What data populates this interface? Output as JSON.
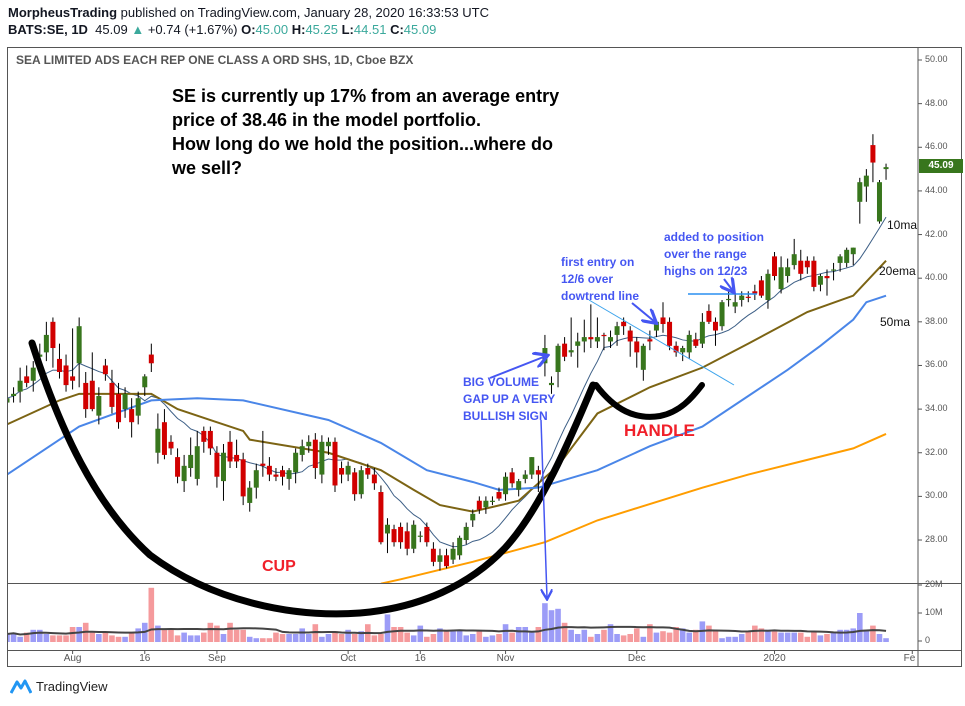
{
  "header": {
    "author": "MorpheusTrading",
    "published": " published on TradingView.com, January 28, 2020 16:33:53 UTC",
    "symbol": "BATS:SE, 1D",
    "last": "45.09",
    "change": "+0.74 (+1.67%)",
    "o_label": "O:",
    "o": "45.00",
    "h_label": "H:",
    "h": "45.25",
    "l_label": "L:",
    "l": "44.51",
    "c_label": "C:",
    "c": "45.09",
    "up_icon": "triangle-up-icon"
  },
  "symbol_title": "SEA LIMITED ADS EACH REP ONE CLASS A ORD SHS, 1D, Cboe BZX",
  "last_price_label": "45.09",
  "annotations": {
    "main": [
      "SE is currently up 17% from an average entry",
      "price of 38.46 in the model portfolio.",
      "How long do we hold the position...where do",
      "we sell?"
    ],
    "first_entry": [
      "first entry on",
      "12/6 over",
      "dowtrend line"
    ],
    "added": [
      "added to position",
      "over the range",
      "highs on 12/23"
    ],
    "gap": [
      "BIG VOLUME",
      "GAP UP A VERY",
      "BULLISH SIGN"
    ],
    "cup": "CUP",
    "handle": "HANDLE",
    "ma10": "10ma",
    "ema20": "20ema",
    "ma50": "50ma"
  },
  "colors": {
    "up": "#38761d",
    "down": "#d10000",
    "vol_up": "#9c9cf7",
    "vol_down": "#f59a9c",
    "ma10": "#3d5f86",
    "ema20": "#7c6414",
    "ma50": "#4a86e8",
    "ma200": "#ff9d00",
    "annotation_blue": "#4556f2",
    "teal": "#3ba99c"
  },
  "chart_data": {
    "type": "candlestick",
    "ylim": [
      26.03,
      50.55
    ],
    "volume_ylim": [
      0,
      24
    ],
    "grid": false,
    "y_ticks": [
      "50.00",
      "48.00",
      "46.00",
      "44.00",
      "42.00",
      "40.00",
      "38.00",
      "36.00",
      "34.00",
      "32.00",
      "30.00",
      "28.00"
    ],
    "volume_ticks": [
      {
        "label": "20M",
        "value": 20
      },
      {
        "label": "10M",
        "value": 10
      },
      {
        "label": "0",
        "value": 0
      }
    ],
    "x_ticks": [
      {
        "label": "Aug",
        "bar": 10
      },
      {
        "label": "16",
        "bar": 21
      },
      {
        "label": "Sep",
        "bar": 32
      },
      {
        "label": "Oct",
        "bar": 52
      },
      {
        "label": "16",
        "bar": 63
      },
      {
        "label": "Nov",
        "bar": 76
      },
      {
        "label": "Dec",
        "bar": 96
      },
      {
        "label": "2020",
        "bar": 117
      },
      {
        "label": "Feb",
        "bar": 138
      }
    ],
    "candles_ohlc": [
      [
        34.3,
        34.9,
        33.8,
        34.5
      ],
      [
        34.6,
        35.0,
        34.3,
        34.7
      ],
      [
        34.8,
        35.9,
        34.3,
        35.3
      ],
      [
        35.5,
        36.0,
        35.0,
        35.2
      ],
      [
        35.3,
        36.2,
        34.8,
        35.9
      ],
      [
        36.4,
        37.0,
        35.8,
        36.5
      ],
      [
        36.6,
        38.0,
        36.2,
        37.4
      ],
      [
        38.0,
        38.2,
        35.9,
        36.8
      ],
      [
        36.3,
        37.0,
        35.4,
        35.7
      ],
      [
        36.0,
        36.5,
        34.8,
        35.1
      ],
      [
        35.5,
        37.7,
        34.9,
        35.3
      ],
      [
        36.1,
        38.2,
        35.0,
        37.8
      ],
      [
        35.2,
        35.7,
        33.6,
        34.0
      ],
      [
        35.3,
        36.6,
        33.9,
        34.0
      ],
      [
        33.7,
        35.0,
        33.3,
        34.6
      ],
      [
        36.0,
        36.3,
        35.3,
        35.6
      ],
      [
        35.2,
        35.8,
        33.8,
        34.1
      ],
      [
        34.7,
        35.2,
        33.1,
        33.4
      ],
      [
        34.0,
        35.0,
        33.6,
        34.7
      ],
      [
        34.0,
        34.5,
        32.7,
        33.4
      ],
      [
        33.7,
        34.8,
        33.3,
        34.5
      ],
      [
        35.0,
        35.6,
        34.6,
        35.5
      ],
      [
        36.5,
        37.0,
        35.7,
        36.1
      ],
      [
        32.0,
        33.8,
        31.5,
        33.1
      ],
      [
        33.4,
        34.0,
        31.7,
        31.9
      ],
      [
        32.5,
        32.8,
        31.9,
        32.2
      ],
      [
        31.8,
        32.2,
        30.6,
        30.9
      ],
      [
        30.7,
        31.9,
        30.2,
        31.4
      ],
      [
        31.3,
        32.7,
        30.9,
        31.9
      ],
      [
        30.8,
        33.0,
        30.5,
        32.3
      ],
      [
        33.0,
        33.2,
        32.0,
        32.5
      ],
      [
        33.0,
        33.2,
        31.9,
        32.2
      ],
      [
        32.0,
        32.3,
        30.4,
        30.9
      ],
      [
        30.7,
        32.4,
        29.8,
        32.0
      ],
      [
        32.5,
        33.0,
        31.3,
        31.6
      ],
      [
        31.9,
        32.6,
        31.3,
        31.6
      ],
      [
        31.7,
        32.0,
        29.6,
        30.0
      ],
      [
        29.7,
        30.7,
        29.3,
        30.4
      ],
      [
        30.4,
        31.5,
        29.9,
        31.2
      ],
      [
        31.5,
        33.0,
        30.9,
        31.4
      ],
      [
        31.4,
        31.8,
        30.7,
        31.0
      ],
      [
        31.0,
        31.3,
        30.7,
        30.9
      ],
      [
        31.2,
        31.4,
        30.5,
        30.9
      ],
      [
        30.8,
        31.3,
        30.3,
        31.2
      ],
      [
        31.1,
        32.2,
        30.6,
        32.0
      ],
      [
        31.9,
        32.6,
        31.6,
        32.3
      ],
      [
        32.3,
        32.8,
        32.0,
        32.5
      ],
      [
        32.6,
        32.9,
        30.8,
        31.3
      ],
      [
        31.0,
        32.8,
        30.6,
        32.5
      ],
      [
        32.3,
        32.7,
        31.9,
        32.5
      ],
      [
        32.5,
        32.7,
        30.2,
        30.5
      ],
      [
        31.3,
        31.6,
        30.6,
        31.0
      ],
      [
        31.0,
        31.6,
        30.7,
        31.4
      ],
      [
        31.1,
        31.3,
        29.8,
        30.1
      ],
      [
        30.1,
        31.4,
        29.9,
        31.2
      ],
      [
        31.3,
        31.5,
        30.8,
        31.0
      ],
      [
        31.0,
        31.3,
        30.3,
        30.6
      ],
      [
        30.2,
        30.5,
        27.8,
        27.9
      ],
      [
        28.3,
        29.0,
        27.4,
        28.7
      ],
      [
        28.5,
        28.7,
        27.7,
        27.9
      ],
      [
        28.6,
        28.8,
        27.6,
        27.9
      ],
      [
        28.4,
        28.8,
        27.3,
        27.6
      ],
      [
        27.6,
        28.9,
        27.4,
        28.7
      ],
      [
        28.2,
        28.4,
        27.9,
        28.2
      ],
      [
        28.6,
        28.8,
        27.7,
        27.9
      ],
      [
        27.6,
        27.9,
        26.8,
        27.0
      ],
      [
        27.0,
        27.6,
        26.6,
        27.3
      ],
      [
        27.3,
        27.6,
        26.7,
        26.8
      ],
      [
        27.1,
        27.9,
        26.9,
        27.6
      ],
      [
        27.3,
        28.2,
        27.1,
        28.1
      ],
      [
        28.0,
        28.8,
        27.8,
        28.6
      ],
      [
        28.9,
        29.4,
        28.6,
        29.2
      ],
      [
        29.8,
        30.0,
        29.2,
        29.4
      ],
      [
        29.5,
        30.0,
        29.2,
        29.8
      ],
      [
        29.8,
        30.0,
        29.6,
        29.8
      ],
      [
        30.2,
        30.4,
        29.8,
        29.9
      ],
      [
        30.1,
        31.1,
        29.8,
        30.9
      ],
      [
        31.1,
        31.3,
        30.4,
        30.6
      ],
      [
        30.3,
        30.8,
        30.0,
        30.7
      ],
      [
        30.8,
        31.2,
        30.6,
        31.0
      ],
      [
        31.0,
        31.8,
        30.8,
        31.8
      ],
      [
        31.2,
        31.4,
        30.2,
        31.0
      ],
      [
        36.1,
        37.4,
        35.5,
        36.8
      ],
      [
        35.1,
        35.5,
        34.7,
        35.2
      ],
      [
        35.7,
        37.0,
        35.0,
        36.9
      ],
      [
        37.0,
        37.3,
        36.2,
        36.4
      ],
      [
        36.6,
        38.2,
        36.4,
        36.7
      ],
      [
        36.9,
        37.5,
        35.9,
        37.1
      ],
      [
        37.1,
        38.1,
        36.6,
        37.3
      ],
      [
        37.3,
        38.8,
        36.8,
        37.2
      ],
      [
        37.1,
        38.2,
        36.8,
        37.3
      ],
      [
        37.4,
        37.5,
        36.7,
        37.35
      ],
      [
        37.1,
        37.6,
        36.8,
        37.3
      ],
      [
        37.4,
        38.0,
        36.9,
        37.8
      ],
      [
        38.0,
        38.2,
        37.4,
        37.8
      ],
      [
        37.6,
        37.8,
        36.4,
        37.1
      ],
      [
        37.1,
        37.3,
        35.9,
        36.6
      ],
      [
        35.8,
        37.0,
        35.3,
        36.9
      ],
      [
        37.2,
        37.6,
        36.7,
        37.1
      ],
      [
        37.6,
        38.0,
        37.3,
        38.0
      ],
      [
        38.2,
        38.9,
        37.5,
        37.9
      ],
      [
        38.0,
        38.2,
        36.7,
        36.9
      ],
      [
        36.9,
        37.1,
        36.4,
        36.6
      ],
      [
        36.6,
        36.9,
        36.2,
        36.8
      ],
      [
        36.6,
        37.6,
        36.3,
        37.4
      ],
      [
        37.2,
        37.5,
        36.8,
        36.9
      ],
      [
        37.0,
        38.4,
        36.8,
        38.0
      ],
      [
        38.5,
        38.8,
        37.9,
        38.0
      ],
      [
        38.0,
        38.2,
        36.9,
        37.6
      ],
      [
        37.8,
        39.0,
        37.6,
        38.9
      ],
      [
        39.0,
        39.4,
        38.7,
        39.05
      ],
      [
        38.7,
        39.3,
        38.4,
        38.9
      ],
      [
        39.0,
        39.4,
        38.7,
        39.2
      ],
      [
        39.15,
        39.4,
        38.9,
        39.1
      ],
      [
        39.4,
        39.7,
        39.0,
        39.3
      ],
      [
        39.9,
        40.1,
        39.1,
        39.2
      ],
      [
        39.0,
        40.4,
        38.6,
        40.2
      ],
      [
        41.0,
        41.2,
        39.9,
        40.1
      ],
      [
        39.5,
        41.0,
        39.3,
        40.5
      ],
      [
        40.1,
        40.9,
        39.8,
        40.5
      ],
      [
        40.6,
        41.8,
        40.4,
        41.1
      ],
      [
        40.8,
        41.3,
        39.9,
        40.2
      ],
      [
        40.8,
        41.0,
        40.2,
        40.5
      ],
      [
        40.8,
        41.0,
        39.4,
        39.6
      ],
      [
        39.7,
        40.2,
        39.4,
        40.1
      ],
      [
        40.1,
        40.4,
        39.2,
        40.0
      ],
      [
        40.4,
        40.7,
        39.9,
        40.4
      ],
      [
        40.7,
        41.1,
        40.3,
        41.0
      ],
      [
        40.7,
        41.4,
        40.5,
        41.3
      ],
      [
        41.1,
        41.4,
        40.6,
        41.4
      ],
      [
        43.5,
        44.6,
        42.5,
        44.4
      ],
      [
        44.2,
        45.0,
        43.5,
        44.7
      ],
      [
        46.1,
        46.6,
        44.4,
        45.3
      ],
      [
        42.6,
        44.5,
        42.5,
        44.4
      ],
      [
        45.0,
        45.25,
        44.51,
        45.09
      ]
    ],
    "volume_millions": [
      2.5,
      3,
      1.5,
      3,
      4,
      4,
      2.5,
      2,
      2,
      2,
      5,
      5,
      6.5,
      3,
      2.5,
      3,
      2,
      1.5,
      1.5,
      3,
      4.5,
      6.5,
      19,
      5.5,
      4,
      4.5,
      2,
      3,
      2,
      2,
      3,
      6.5,
      5.5,
      2.5,
      6.5,
      4,
      4,
      1.5,
      1,
      1,
      1,
      3,
      2.5,
      2.5,
      2.5,
      4.5,
      2.5,
      6,
      1.5,
      2.5,
      3.5,
      2.5,
      4,
      2.5,
      3.5,
      6,
      2,
      2.5,
      9.5,
      5,
      5,
      3,
      2,
      5.5,
      1.5,
      2.5,
      4.5,
      4,
      3.5,
      4,
      2,
      2.5,
      3.5,
      1.5,
      2,
      2.5,
      6,
      3,
      5,
      5,
      3,
      5,
      13.5,
      11,
      11.5,
      6.5,
      4,
      2.5,
      4,
      1.5,
      2.5,
      4,
      6,
      2.5,
      2,
      2.5,
      4.5,
      1.5,
      6,
      3,
      3.5,
      3,
      5,
      4.5,
      3,
      4,
      7,
      5.5,
      3.5,
      1,
      1.5,
      1.5,
      2.5,
      3.5,
      5.5,
      4.5,
      4,
      4,
      3,
      3,
      3,
      3,
      1.5,
      3.5,
      2,
      2.5,
      3,
      4,
      4,
      4.5,
      10,
      4,
      5.5,
      2.5,
      1
    ],
    "series": [
      {
        "name": "10ma",
        "kind": "sma",
        "period": 10,
        "color_key": "ma10"
      },
      {
        "name": "20ema",
        "color_key": "ema20",
        "points": [
          [
            0,
            33.3
          ],
          [
            8,
            34.4
          ],
          [
            11,
            34.7
          ],
          [
            22,
            34.7
          ],
          [
            26,
            34.0
          ],
          [
            31,
            33.5
          ],
          [
            36,
            33.0
          ],
          [
            37,
            32.6
          ],
          [
            45,
            32.2
          ],
          [
            49,
            32.0
          ],
          [
            57,
            31.2
          ],
          [
            62,
            30.3
          ],
          [
            66,
            29.6
          ],
          [
            71,
            29.3
          ],
          [
            78,
            29.8
          ],
          [
            84,
            31.4
          ],
          [
            90,
            33.8
          ],
          [
            98,
            35.0
          ],
          [
            106,
            35.9
          ],
          [
            113,
            37.0
          ],
          [
            122,
            38.45
          ],
          [
            129,
            39.2
          ],
          [
            134,
            40.8
          ]
        ]
      },
      {
        "name": "50ma",
        "color_key": "ma50",
        "points": [
          [
            0,
            31.0
          ],
          [
            11,
            33.2
          ],
          [
            22,
            34.4
          ],
          [
            29,
            34.5
          ],
          [
            36,
            34.4
          ],
          [
            49,
            33.5
          ],
          [
            57,
            32.45
          ],
          [
            64,
            31.2
          ],
          [
            71,
            30.66
          ],
          [
            75,
            30.3
          ],
          [
            81,
            30.4
          ],
          [
            90,
            31.2
          ],
          [
            98,
            32.3
          ],
          [
            106,
            33.2
          ],
          [
            113,
            34.6
          ],
          [
            119,
            35.8
          ],
          [
            124,
            36.9
          ],
          [
            129,
            38.1
          ],
          [
            131,
            38.9
          ],
          [
            134,
            39.2
          ]
        ]
      },
      {
        "color_key": "ma200",
        "points": [
          [
            57,
            26.0
          ],
          [
            60,
            26.2
          ],
          [
            71,
            27.0
          ],
          [
            82,
            27.9
          ],
          [
            90,
            28.9
          ],
          [
            106,
            30.4
          ],
          [
            113,
            31.0
          ],
          [
            121,
            31.6
          ],
          [
            129,
            32.2
          ],
          [
            134,
            32.86
          ]
        ]
      }
    ],
    "volume_ma_period": 20
  },
  "footer": {
    "logo_text": "TradingView",
    "logo_icon": "tradingview-logo-icon"
  }
}
